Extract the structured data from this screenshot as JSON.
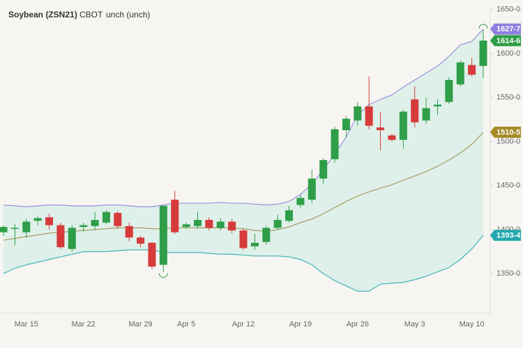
{
  "chart_data": {
    "type": "candlestick",
    "title": "Soybean (ZSN21)",
    "exchange": "CBOT",
    "change": "unch (unch)",
    "categories": [
      null,
      null,
      "Mar 15",
      null,
      null,
      null,
      null,
      "Mar 22",
      null,
      null,
      null,
      null,
      "Mar 29",
      null,
      null,
      null,
      "Apr 5",
      null,
      null,
      null,
      null,
      "Apr 12",
      null,
      null,
      null,
      null,
      "Apr 19",
      null,
      null,
      null,
      null,
      "Apr 26",
      null,
      null,
      null,
      null,
      "May 3",
      null,
      null,
      null,
      null,
      "May 10",
      null
    ],
    "open": [
      1397,
      1401,
      1397,
      1410,
      1414,
      1405,
      1378,
      1403,
      1404,
      1408,
      1419,
      1404,
      1391,
      1385,
      1360,
      1434,
      1403,
      1404,
      1411,
      1402,
      1409,
      1399,
      1381,
      1386,
      1402,
      1410,
      1428,
      1434,
      1458,
      1480,
      1513,
      1524,
      1540,
      1516,
      1507,
      1502,
      1548,
      1524,
      1540,
      1545,
      1565,
      1587,
      1586
    ],
    "high": [
      1405,
      1406,
      1412,
      1415,
      1418,
      1408,
      1405,
      1408,
      1420,
      1422,
      1421,
      1408,
      1393,
      1386,
      1428,
      1444,
      1408,
      1420,
      1414,
      1413,
      1412,
      1401,
      1395,
      1404,
      1417,
      1427,
      1440,
      1468,
      1481,
      1517,
      1529,
      1545,
      1574,
      1534,
      1509,
      1536,
      1563,
      1550,
      1548,
      1573,
      1592,
      1595,
      1627
    ],
    "low": [
      1393,
      1382,
      1391,
      1405,
      1400,
      1378,
      1375,
      1398,
      1400,
      1406,
      1401,
      1387,
      1380,
      1355,
      1352,
      1395,
      1401,
      1401,
      1399,
      1399,
      1396,
      1377,
      1377,
      1383,
      1400,
      1408,
      1425,
      1430,
      1452,
      1476,
      1505,
      1518,
      1514,
      1490,
      1500,
      1492,
      1516,
      1520,
      1530,
      1543,
      1563,
      1574,
      1572
    ],
    "close": [
      1403,
      1402,
      1409,
      1413,
      1405,
      1380,
      1402,
      1405,
      1411,
      1420,
      1404,
      1391,
      1384,
      1358,
      1427,
      1397,
      1406,
      1411,
      1402,
      1409,
      1399,
      1379,
      1385,
      1402,
      1411,
      1422,
      1436,
      1458,
      1479,
      1514,
      1526,
      1540,
      1518,
      1513,
      1502,
      1534,
      1522,
      1538,
      1542,
      1570,
      1590,
      1576,
      1614.75
    ],
    "up_color": "#2e9e48",
    "down_color": "#d63a3a",
    "bands": [
      {
        "color": "#9d8fe0",
        "values": [
          1428,
          1427,
          1426,
          1427,
          1428,
          1428,
          1427,
          1427,
          1427,
          1428,
          1428,
          1427,
          1426,
          1426,
          1428,
          1430,
          1430,
          1430,
          1430,
          1431,
          1430,
          1430,
          1429,
          1428,
          1429,
          1432,
          1440,
          1452,
          1468,
          1486,
          1505,
          1530,
          1542,
          1548,
          1553,
          1562,
          1570,
          1578,
          1586,
          1597,
          1610,
          1614,
          1627.875
        ]
      },
      {
        "color": "#a59c5e",
        "values": [
          1388,
          1390,
          1392,
          1394,
          1396,
          1397,
          1398,
          1399,
          1400,
          1401,
          1402,
          1402,
          1402,
          1401,
          1401,
          1402,
          1402,
          1402,
          1402,
          1402,
          1402,
          1401,
          1399,
          1398,
          1400,
          1403,
          1408,
          1412,
          1418,
          1425,
          1432,
          1438,
          1443,
          1447,
          1451,
          1456,
          1461,
          1466,
          1472,
          1479,
          1487,
          1497,
          1510.625
        ]
      },
      {
        "color": "#3fb3ba",
        "values": [
          1350,
          1356,
          1360,
          1363,
          1366,
          1369,
          1372,
          1375,
          1375,
          1375,
          1376,
          1377,
          1377,
          1377,
          1374,
          1374,
          1374,
          1374,
          1373,
          1372,
          1372,
          1371,
          1370,
          1370,
          1370,
          1369,
          1366,
          1360,
          1350,
          1342,
          1336,
          1330,
          1330,
          1338,
          1339,
          1340,
          1343,
          1347,
          1352,
          1357,
          1366,
          1378,
          1393.5
        ]
      }
    ],
    "band_fill": "#d6ede6",
    "price_tags": [
      {
        "label": "1627-7",
        "value": 1627.875,
        "color": "#8f7fe0"
      },
      {
        "label": "1614-6",
        "value": 1614.75,
        "color": "#2e9e48"
      },
      {
        "label": "1510-5",
        "value": 1510.625,
        "color": "#a68a25"
      },
      {
        "label": "1393-4",
        "value": 1393.5,
        "color": "#23a8b0"
      }
    ],
    "ylim": [
      1305,
      1653
    ],
    "yticks": [
      {
        "value": 1350,
        "label": "1350-0"
      },
      {
        "value": 1400,
        "label": "1400-0"
      },
      {
        "value": 1450,
        "label": "1450-0"
      },
      {
        "value": 1500,
        "label": "1500-0"
      },
      {
        "value": 1550,
        "label": "1550-0"
      },
      {
        "value": 1600,
        "label": "1600-0"
      },
      {
        "value": 1650,
        "label": "1650-0"
      }
    ]
  }
}
